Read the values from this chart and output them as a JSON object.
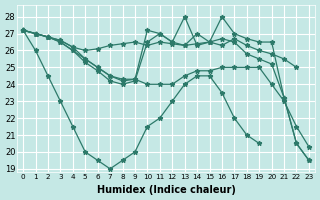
{
  "xlabel": "Humidex (Indice chaleur)",
  "xlim": [
    -0.5,
    23.5
  ],
  "ylim": [
    18.8,
    28.7
  ],
  "yticks": [
    19,
    20,
    21,
    22,
    23,
    24,
    25,
    26,
    27,
    28
  ],
  "xticks": [
    0,
    1,
    2,
    3,
    4,
    5,
    6,
    7,
    8,
    9,
    10,
    11,
    12,
    13,
    14,
    15,
    16,
    17,
    18,
    19,
    20,
    21,
    22,
    23
  ],
  "bg_color": "#c5e8e5",
  "grid_color": "#ffffff",
  "line_color": "#2d7a6a",
  "series": [
    {
      "x": [
        0,
        1,
        2,
        3,
        4,
        5,
        6,
        7,
        8,
        9,
        10,
        11,
        12,
        13,
        14,
        15,
        16,
        17,
        18,
        19,
        20,
        21,
        22
      ],
      "y": [
        27.2,
        27.0,
        26.8,
        26.6,
        26.2,
        26.0,
        26.1,
        26.3,
        26.4,
        26.5,
        26.3,
        26.5,
        26.4,
        26.3,
        26.4,
        26.5,
        26.3,
        26.7,
        26.3,
        26.0,
        25.8,
        25.5,
        25.0
      ]
    },
    {
      "x": [
        0,
        1,
        2,
        3,
        4,
        5,
        6,
        7,
        8,
        9,
        10,
        11,
        12,
        13,
        14,
        15,
        16,
        17,
        18,
        19,
        20,
        21,
        22,
        23
      ],
      "y": [
        27.2,
        27.0,
        26.8,
        26.6,
        26.2,
        25.5,
        25.0,
        24.5,
        24.3,
        24.3,
        24.0,
        24.0,
        24.0,
        24.5,
        24.8,
        24.8,
        25.0,
        25.0,
        25.0,
        25.0,
        24.0,
        23.0,
        21.5,
        20.3
      ]
    },
    {
      "x": [
        0,
        1,
        2,
        3,
        4,
        5,
        6,
        7,
        8,
        9,
        10,
        11,
        12,
        13,
        14,
        15,
        16,
        17,
        18,
        19,
        20,
        21,
        22,
        23
      ],
      "y": [
        27.2,
        27.0,
        26.8,
        26.5,
        26.0,
        25.5,
        25.0,
        24.5,
        24.2,
        24.3,
        27.2,
        27.0,
        26.5,
        28.0,
        26.3,
        26.5,
        28.0,
        27.0,
        26.7,
        26.5,
        26.5,
        23.2,
        20.5,
        19.5
      ]
    },
    {
      "x": [
        0,
        1,
        2,
        3,
        4,
        5,
        6,
        7,
        8,
        9,
        10,
        11,
        12,
        13,
        14,
        15,
        16,
        17,
        18,
        19,
        20,
        21,
        22,
        23
      ],
      "y": [
        27.2,
        27.0,
        26.8,
        26.5,
        26.0,
        25.3,
        24.8,
        24.2,
        24.0,
        24.2,
        26.5,
        27.0,
        26.5,
        26.3,
        27.0,
        26.5,
        26.7,
        26.5,
        25.8,
        25.5,
        25.2,
        23.2,
        20.5,
        19.5
      ]
    },
    {
      "x": [
        0,
        1,
        2,
        3,
        4,
        5,
        6,
        7,
        8,
        9,
        10,
        11,
        12,
        13,
        14,
        15,
        16,
        17,
        18,
        19
      ],
      "y": [
        27.2,
        26.0,
        24.5,
        23.0,
        21.5,
        20.0,
        19.5,
        19.0,
        19.5,
        20.0,
        21.5,
        22.0,
        23.0,
        24.0,
        24.5,
        24.5,
        23.5,
        22.0,
        21.0,
        20.5
      ]
    }
  ]
}
